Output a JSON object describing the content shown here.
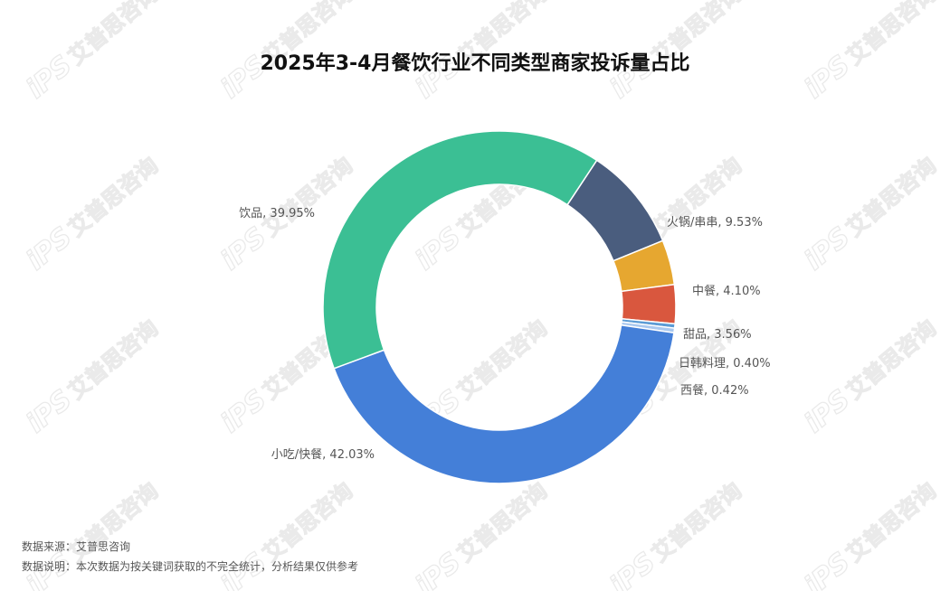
{
  "chart_data": {
    "type": "pie",
    "style": "donut",
    "title": "2025年3-4月餐饮行业不同类型商家投诉量占比",
    "slices": [
      {
        "name": "火锅/串串",
        "value": 9.53,
        "label": "火锅/串串, 9.53%",
        "color": "#4a5d7e"
      },
      {
        "name": "中餐",
        "value": 4.1,
        "label": "中餐, 4.10%",
        "color": "#e6a730"
      },
      {
        "name": "甜品",
        "value": 3.56,
        "label": "甜品, 3.56%",
        "color": "#d9573e"
      },
      {
        "name": "日韩料理",
        "value": 0.4,
        "label": "日韩料理, 0.40%",
        "color": "#5b9bd5"
      },
      {
        "name": "西餐",
        "value": 0.42,
        "label": "西餐, 0.42%",
        "color": "#a9c8ef"
      },
      {
        "name": "小吃/快餐",
        "value": 42.03,
        "label": "小吃/快餐, 42.03%",
        "color": "#447fd8"
      },
      {
        "name": "饮品",
        "value": 39.95,
        "label": "饮品, 39.95%",
        "color": "#3bbf94"
      }
    ],
    "legend": "none",
    "labels": "outside"
  },
  "footer": {
    "source": "数据来源：艾普思咨询",
    "note": "数据说明：本次数据为按关键词获取的不完全统计，分析结果仅供参考"
  },
  "watermark": {
    "text": "艾普思咨询",
    "logo": "iPS",
    "color": "#d9d9d9"
  }
}
